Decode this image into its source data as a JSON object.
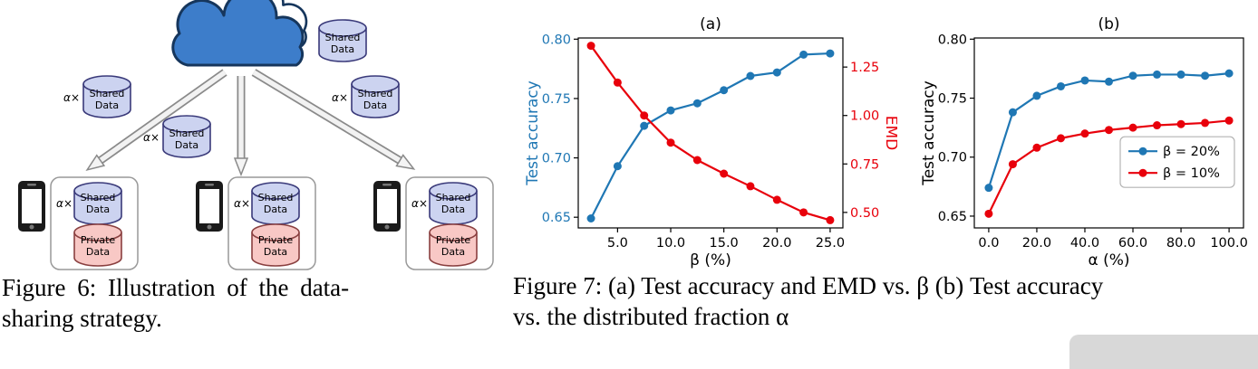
{
  "figure6": {
    "caption_line1": "Figure 6: Illustration of the data-",
    "caption_line2": "sharing strategy.",
    "labels": {
      "alpha_times": "α×",
      "shared_line1": "Shared",
      "shared_line2": "Data",
      "private_line1": "Private",
      "private_line2": "Data"
    },
    "colors": {
      "cloud_fill": "#3d7dca",
      "cloud_stroke": "#16365c",
      "shared_fill": "#ccd3f0",
      "private_fill": "#f8c8c5"
    }
  },
  "figure7": {
    "caption_line1": "Figure 7: (a) Test accuracy and EMD vs. β (b) Test accuracy",
    "caption_line2": "vs. the distributed fraction α"
  },
  "chart_data": [
    {
      "type": "line",
      "title": "(a)",
      "xlabel": "β (%)",
      "x": [
        2.5,
        5,
        7.5,
        10,
        12.5,
        15,
        17.5,
        20,
        22.5,
        25
      ],
      "xlim": [
        1.3,
        26.2
      ],
      "xticks": [
        5,
        10,
        15,
        20,
        25
      ],
      "xtick_labels": [
        "5.0",
        "10.0",
        "15.0",
        "20.0",
        "25.0"
      ],
      "left_axis": {
        "label": "Test accuracy",
        "color": "#1f77b4",
        "lim": [
          0.641,
          0.801
        ],
        "ticks": [
          0.65,
          0.7,
          0.75,
          0.8
        ],
        "tick_labels": [
          "0.65",
          "0.70",
          "0.75",
          "0.80"
        ]
      },
      "right_axis": {
        "label": "EMD",
        "color": "#e8000b",
        "lim": [
          0.42,
          1.4
        ],
        "ticks": [
          0.5,
          0.75,
          1.0,
          1.25
        ],
        "tick_labels": [
          "0.50",
          "0.75",
          "1.00",
          "1.25"
        ]
      },
      "series": [
        {
          "name": "Test accuracy",
          "axis": "left",
          "color": "#1f77b4",
          "values": [
            0.649,
            0.693,
            0.727,
            0.74,
            0.746,
            0.757,
            0.769,
            0.772,
            0.787,
            0.788
          ]
        },
        {
          "name": "EMD",
          "axis": "right",
          "color": "#e8000b",
          "values": [
            1.36,
            1.17,
            1.0,
            0.86,
            0.77,
            0.7,
            0.635,
            0.565,
            0.5,
            0.46
          ]
        }
      ],
      "grid": false,
      "legend": null
    },
    {
      "type": "line",
      "title": "(b)",
      "xlabel": "α (%)",
      "x": [
        0,
        10,
        20,
        30,
        40,
        50,
        60,
        70,
        80,
        90,
        100
      ],
      "xlim": [
        -6,
        106
      ],
      "xticks": [
        0,
        20,
        40,
        60,
        80,
        100
      ],
      "xtick_labels": [
        "0.0",
        "20.0",
        "40.0",
        "60.0",
        "80.0",
        "100.0"
      ],
      "left_axis": {
        "label": "Test accuracy",
        "color": "#000000",
        "lim": [
          0.64,
          0.801
        ],
        "ticks": [
          0.65,
          0.7,
          0.75,
          0.8
        ],
        "tick_labels": [
          "0.65",
          "0.70",
          "0.75",
          "0.80"
        ]
      },
      "right_axis": null,
      "series": [
        {
          "name": "β = 20%",
          "axis": "left",
          "color": "#1f77b4",
          "values": [
            0.674,
            0.738,
            0.752,
            0.76,
            0.765,
            0.764,
            0.769,
            0.77,
            0.77,
            0.769,
            0.771
          ]
        },
        {
          "name": "β = 10%",
          "axis": "left",
          "color": "#e8000b",
          "values": [
            0.652,
            0.694,
            0.708,
            0.716,
            0.72,
            0.723,
            0.725,
            0.727,
            0.728,
            0.729,
            0.731
          ]
        }
      ],
      "grid": false,
      "legend": {
        "entries": [
          "β = 20%",
          "β = 10%"
        ],
        "position": "center right"
      }
    }
  ]
}
